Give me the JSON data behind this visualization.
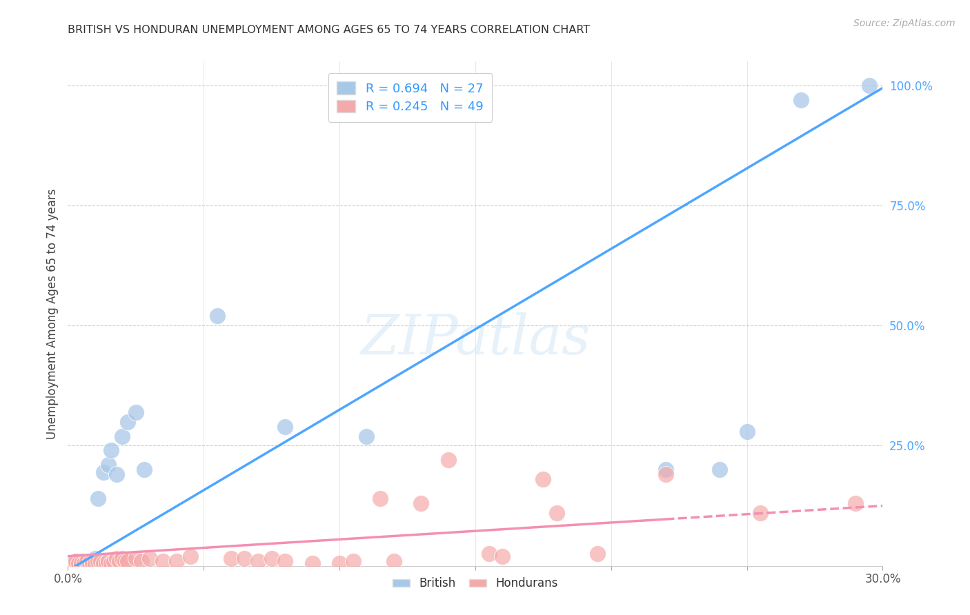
{
  "title": "BRITISH VS HONDURAN UNEMPLOYMENT AMONG AGES 65 TO 74 YEARS CORRELATION CHART",
  "source": "Source: ZipAtlas.com",
  "ylabel": "Unemployment Among Ages 65 to 74 years",
  "xlim": [
    0,
    0.3
  ],
  "ylim": [
    0,
    1.05
  ],
  "british_color": "#a8c8e8",
  "honduran_color": "#f4aaaa",
  "british_line_color": "#4da6ff",
  "honduran_line_color": "#f48fb1",
  "british_R": 0.694,
  "british_N": 27,
  "honduran_R": 0.245,
  "honduran_N": 49,
  "background_color": "#ffffff",
  "grid_color": "#cccccc",
  "watermark": "ZIPatlas",
  "british_scatter_x": [
    0.001,
    0.002,
    0.003,
    0.004,
    0.005,
    0.006,
    0.007,
    0.008,
    0.009,
    0.01,
    0.011,
    0.013,
    0.015,
    0.016,
    0.018,
    0.02,
    0.022,
    0.025,
    0.028,
    0.055,
    0.08,
    0.11,
    0.22,
    0.24,
    0.25,
    0.27,
    0.295
  ],
  "british_scatter_y": [
    0.005,
    0.005,
    0.01,
    0.005,
    0.01,
    0.005,
    0.005,
    0.005,
    0.005,
    0.015,
    0.14,
    0.195,
    0.21,
    0.24,
    0.19,
    0.27,
    0.3,
    0.32,
    0.2,
    0.52,
    0.29,
    0.27,
    0.2,
    0.2,
    0.28,
    0.97,
    1.0
  ],
  "honduran_scatter_x": [
    0.001,
    0.002,
    0.003,
    0.003,
    0.004,
    0.005,
    0.006,
    0.007,
    0.008,
    0.009,
    0.01,
    0.011,
    0.012,
    0.013,
    0.014,
    0.015,
    0.016,
    0.017,
    0.018,
    0.019,
    0.02,
    0.021,
    0.022,
    0.025,
    0.027,
    0.03,
    0.035,
    0.04,
    0.045,
    0.06,
    0.065,
    0.07,
    0.075,
    0.08,
    0.09,
    0.1,
    0.105,
    0.115,
    0.12,
    0.13,
    0.14,
    0.155,
    0.16,
    0.175,
    0.18,
    0.195,
    0.22,
    0.255,
    0.29
  ],
  "honduran_scatter_y": [
    0.005,
    0.005,
    0.005,
    0.01,
    0.005,
    0.005,
    0.005,
    0.01,
    0.005,
    0.005,
    0.005,
    0.01,
    0.01,
    0.005,
    0.005,
    0.01,
    0.005,
    0.01,
    0.015,
    0.01,
    0.015,
    0.01,
    0.01,
    0.015,
    0.01,
    0.015,
    0.01,
    0.01,
    0.02,
    0.015,
    0.015,
    0.01,
    0.015,
    0.01,
    0.005,
    0.005,
    0.01,
    0.14,
    0.01,
    0.13,
    0.22,
    0.025,
    0.02,
    0.18,
    0.11,
    0.025,
    0.19,
    0.11,
    0.13
  ]
}
